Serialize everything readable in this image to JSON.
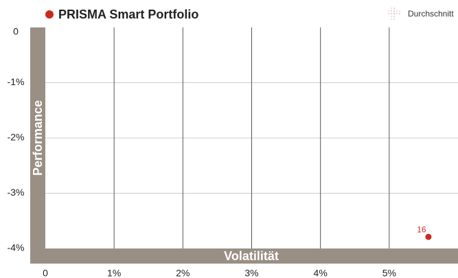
{
  "chart_data": {
    "type": "scatter",
    "title": "PRISMA Smart Portfolio",
    "legend_average": "Durchschnitt",
    "xlabel": "Volatilität",
    "ylabel": "Performance",
    "series": [
      {
        "name": "PRISMA Smart Portfolio",
        "color": "#cc2a1e",
        "x": [
          5.57
        ],
        "values": [
          -3.79
        ],
        "labels": [
          "16"
        ]
      }
    ],
    "xlim": [
      0,
      6
    ],
    "xticks": [
      0,
      {
        "value": 1,
        "label": "1%"
      },
      {
        "value": 2,
        "label": "2%"
      },
      {
        "value": 3,
        "label": "3%"
      },
      {
        "value": 4,
        "label": "4%"
      },
      {
        "value": 5,
        "label": "5%"
      }
    ],
    "ylim": [
      -4,
      0
    ],
    "yticks": [
      0,
      {
        "value": -1,
        "label": "-1%"
      },
      {
        "value": -2,
        "label": "-2%"
      },
      {
        "value": -3,
        "label": "-3%"
      },
      {
        "value": -4,
        "label": "-4%"
      }
    ],
    "grid": true
  }
}
